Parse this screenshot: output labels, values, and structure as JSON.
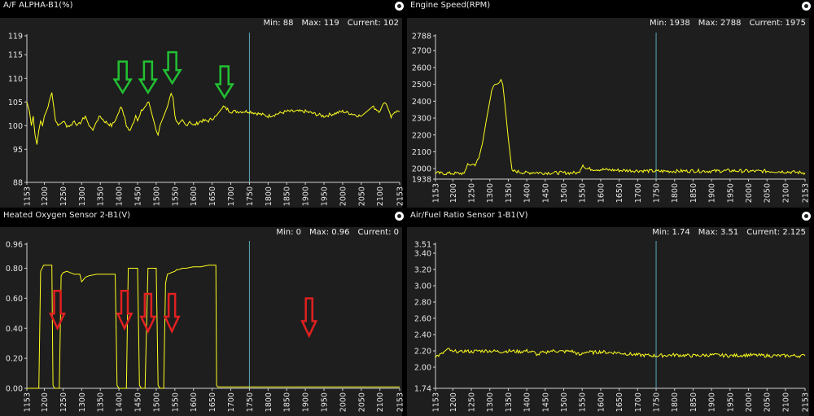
{
  "colors": {
    "trace": "#ffff20",
    "cursor": "#5aa8b8",
    "plot_bg": "#1e1e1e",
    "green_arrow": "#22c033",
    "red_arrow": "#e02020"
  },
  "x_ticks": [
    "1153",
    "1200",
    "1250",
    "1300",
    "1350",
    "1400",
    "1450",
    "1500",
    "1550",
    "1600",
    "1650",
    "1700",
    "1750",
    "1800",
    "1850",
    "1900",
    "1950",
    "2000",
    "2050",
    "2100",
    "2153"
  ],
  "chart_data": [
    {
      "id": "af-alpha",
      "type": "line",
      "title": "A/F ALPHA-B1(%)",
      "stats": {
        "min": "Min: 88",
        "max": "Max: 119",
        "current": "Current: 102"
      },
      "xlim": [
        1153,
        2153
      ],
      "ylim": [
        88,
        119
      ],
      "y_ticks": [
        "119",
        "115",
        "110",
        "105",
        "100",
        "95",
        "88"
      ],
      "cursor_x": 1750,
      "x": [
        1153,
        1160,
        1165,
        1170,
        1175,
        1180,
        1185,
        1190,
        1195,
        1200,
        1210,
        1215,
        1220,
        1225,
        1230,
        1240,
        1250,
        1260,
        1270,
        1280,
        1290,
        1300,
        1310,
        1320,
        1330,
        1340,
        1350,
        1360,
        1380,
        1390,
        1400,
        1405,
        1410,
        1415,
        1420,
        1430,
        1440,
        1445,
        1450,
        1460,
        1470,
        1480,
        1490,
        1500,
        1505,
        1510,
        1520,
        1530,
        1540,
        1545,
        1550,
        1555,
        1560,
        1570,
        1580,
        1590,
        1600,
        1620,
        1640,
        1660,
        1680,
        1700,
        1750,
        1800,
        1850,
        1900,
        1950,
        2000,
        2050,
        2080,
        2100,
        2110,
        2120,
        2130,
        2140,
        2153
      ],
      "y": [
        105,
        103,
        100,
        102,
        98,
        96,
        99,
        101,
        100,
        102,
        104,
        106,
        107,
        104,
        101,
        100,
        101,
        100,
        100,
        101,
        100,
        101,
        102,
        100,
        99,
        101,
        102,
        101,
        100,
        101,
        103,
        104,
        103,
        102,
        100,
        99,
        101,
        102,
        101,
        103,
        104,
        105,
        102,
        99,
        98,
        100,
        102,
        104,
        107,
        106,
        102,
        101,
        100,
        101,
        100,
        101,
        100,
        101,
        101,
        102,
        104,
        103,
        103,
        102,
        103,
        103,
        102,
        103,
        102,
        104,
        103,
        105,
        104,
        102,
        103,
        103
      ],
      "annotations": [
        {
          "kind": "green-down-arrow",
          "x": 1410,
          "y": 107
        },
        {
          "kind": "green-down-arrow",
          "x": 1478,
          "y": 107
        },
        {
          "kind": "green-down-arrow",
          "x": 1543,
          "y": 109
        },
        {
          "kind": "green-down-arrow",
          "x": 1683,
          "y": 106
        }
      ]
    },
    {
      "id": "engine-speed",
      "type": "line",
      "title": "Engine Speed(RPM)",
      "stats": {
        "min": "Min: 1938",
        "max": "Max: 2788",
        "current": "Current: 1975"
      },
      "xlim": [
        1153,
        2153
      ],
      "ylim": [
        1938,
        2788
      ],
      "y_ticks": [
        "2788",
        "2700",
        "2600",
        "2500",
        "2400",
        "2300",
        "2200",
        "2100",
        "2000",
        "1938"
      ],
      "cursor_x": 1750,
      "x": [
        1153,
        1170,
        1200,
        1230,
        1240,
        1250,
        1260,
        1270,
        1280,
        1290,
        1300,
        1305,
        1310,
        1320,
        1330,
        1335,
        1340,
        1350,
        1360,
        1370,
        1380,
        1400,
        1420,
        1440,
        1480,
        1500,
        1530,
        1540,
        1548,
        1552,
        1560,
        1570,
        1600,
        1650,
        1700,
        1750,
        1800,
        1850,
        1900,
        1950,
        2000,
        2050,
        2100,
        2153
      ],
      "y": [
        1975,
        1972,
        1972,
        1972,
        2020,
        2025,
        2025,
        2060,
        2150,
        2280,
        2400,
        2460,
        2490,
        2510,
        2520,
        2500,
        2400,
        2180,
        1985,
        1985,
        1980,
        1975,
        1978,
        1975,
        1975,
        1975,
        1975,
        1975,
        2010,
        2025,
        2000,
        1998,
        1995,
        1990,
        1988,
        1985,
        1985,
        1987,
        1985,
        1988,
        1985,
        1985,
        1982,
        1975
      ]
    },
    {
      "id": "ho2s",
      "type": "line",
      "title": "Heated Oxygen Sensor 2-B1(V)",
      "stats": {
        "min": "Min: 0",
        "max": "Max: 0.96",
        "current": "Current: 0"
      },
      "xlim": [
        1153,
        2153
      ],
      "ylim": [
        0,
        0.96
      ],
      "y_ticks": [
        "0.96",
        "0.80",
        "0.60",
        "0.40",
        "0.20",
        "0.00"
      ],
      "cursor_x": 1750,
      "x": [
        1153,
        1185,
        1190,
        1198,
        1205,
        1220,
        1223,
        1228,
        1240,
        1245,
        1250,
        1260,
        1280,
        1295,
        1300,
        1310,
        1320,
        1340,
        1360,
        1380,
        1390,
        1395,
        1400,
        1405,
        1420,
        1425,
        1430,
        1440,
        1450,
        1455,
        1460,
        1465,
        1470,
        1478,
        1485,
        1490,
        1495,
        1500,
        1505,
        1510,
        1520,
        1525,
        1530,
        1540,
        1550,
        1555,
        1560,
        1570,
        1580,
        1600,
        1620,
        1640,
        1660,
        1662,
        1665,
        1670,
        1700,
        1750,
        1800,
        1900,
        2000,
        2100,
        2153
      ],
      "y": [
        0,
        0,
        0.78,
        0.82,
        0.82,
        0.82,
        0.02,
        0,
        0,
        0.75,
        0.77,
        0.78,
        0.76,
        0.76,
        0.71,
        0.74,
        0.75,
        0.76,
        0.76,
        0.76,
        0.76,
        0.02,
        0,
        0,
        0,
        0.8,
        0.8,
        0.8,
        0.8,
        0.02,
        0,
        0,
        0,
        0.8,
        0.8,
        0.8,
        0.8,
        0.8,
        0.02,
        0,
        0,
        0.7,
        0.76,
        0.77,
        0.78,
        0.79,
        0.79,
        0.8,
        0.8,
        0.81,
        0.81,
        0.82,
        0.82,
        0.02,
        0.01,
        0.01,
        0.01,
        0.01,
        0.01,
        0.01,
        0.01,
        0.01,
        0.01
      ],
      "annotations": [
        {
          "kind": "red-down-arrow",
          "x": 1235,
          "y": 0.4
        },
        {
          "kind": "red-down-arrow",
          "x": 1415,
          "y": 0.4
        },
        {
          "kind": "red-down-arrow",
          "x": 1478,
          "y": 0.38
        },
        {
          "kind": "red-down-arrow",
          "x": 1542,
          "y": 0.38
        },
        {
          "kind": "red-down-arrow",
          "x": 1910,
          "y": 0.35
        }
      ]
    },
    {
      "id": "af-ratio",
      "type": "line",
      "title": "Air/Fuel Ratio Sensor 1-B1(V)",
      "stats": {
        "min": "Min: 1.74",
        "max": "Max: 3.51",
        "current": "Current: 2.125"
      },
      "xlim": [
        1153,
        2153
      ],
      "ylim": [
        1.74,
        3.51
      ],
      "y_ticks": [
        "3.51",
        "3.40",
        "3.20",
        "3.00",
        "2.80",
        "2.60",
        "2.40",
        "2.20",
        "2.00",
        "1.74"
      ],
      "cursor_x": 1750,
      "x": [
        1153,
        1170,
        1180,
        1190,
        1200,
        1210,
        1220,
        1230,
        1250,
        1270,
        1300,
        1330,
        1350,
        1380,
        1400,
        1420,
        1430,
        1440,
        1450,
        1460,
        1480,
        1500,
        1520,
        1540,
        1545,
        1550,
        1560,
        1580,
        1600,
        1620,
        1640,
        1660,
        1680,
        1700,
        1750,
        1800,
        1850,
        1900,
        1950,
        2000,
        2050,
        2100,
        2153
      ],
      "y": [
        2.13,
        2.16,
        2.2,
        2.22,
        2.18,
        2.2,
        2.18,
        2.2,
        2.19,
        2.2,
        2.2,
        2.19,
        2.2,
        2.19,
        2.2,
        2.18,
        2.15,
        2.18,
        2.17,
        2.2,
        2.2,
        2.19,
        2.2,
        2.16,
        2.14,
        2.17,
        2.19,
        2.18,
        2.19,
        2.18,
        2.18,
        2.17,
        2.16,
        2.15,
        2.14,
        2.15,
        2.14,
        2.15,
        2.14,
        2.15,
        2.14,
        2.14,
        2.14
      ]
    }
  ]
}
